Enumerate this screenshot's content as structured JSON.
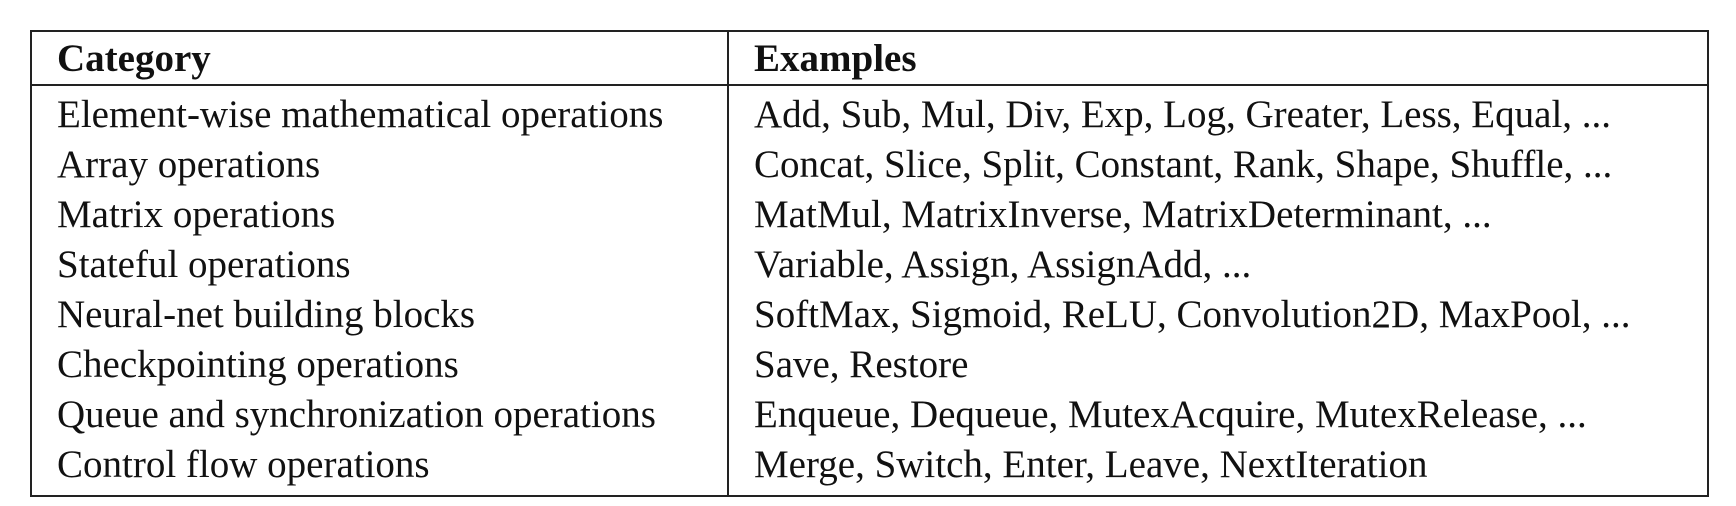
{
  "table": {
    "headers": {
      "category": "Category",
      "examples": "Examples"
    },
    "rows": [
      {
        "category": "Element-wise mathematical operations",
        "examples": "Add, Sub, Mul, Div, Exp, Log, Greater, Less, Equal, ..."
      },
      {
        "category": "Array operations",
        "examples": "Concat, Slice, Split, Constant, Rank, Shape, Shuffle, ..."
      },
      {
        "category": "Matrix operations",
        "examples": "MatMul, MatrixInverse, MatrixDeterminant, ..."
      },
      {
        "category": "Stateful operations",
        "examples": "Variable, Assign, AssignAdd, ..."
      },
      {
        "category": "Neural-net building blocks",
        "examples": "SoftMax, Sigmoid, ReLU, Convolution2D, MaxPool, ..."
      },
      {
        "category": "Checkpointing operations",
        "examples": "Save, Restore"
      },
      {
        "category": "Queue and synchronization operations",
        "examples": "Enqueue, Dequeue, MutexAcquire, MutexRelease, ..."
      },
      {
        "category": "Control flow operations",
        "examples": "Merge, Switch, Enter, Leave, NextIteration"
      }
    ]
  }
}
